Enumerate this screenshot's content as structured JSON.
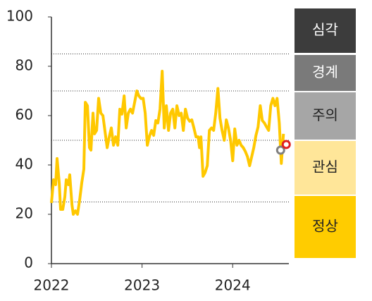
{
  "chart_data": {
    "type": "line",
    "color": "#ffc800",
    "x": [
      2022.0,
      2022.023,
      2022.047,
      2022.062,
      2022.086,
      2022.101,
      2022.125,
      2022.148,
      2022.163,
      2022.187,
      2022.202,
      2022.226,
      2022.241,
      2022.265,
      2022.288,
      2022.311,
      2022.335,
      2022.358,
      2022.374,
      2022.397,
      2022.42,
      2022.436,
      2022.459,
      2022.475,
      2022.498,
      2022.521,
      2022.545,
      2022.568,
      2022.591,
      2022.615,
      2022.638,
      2022.661,
      2022.685,
      2022.708,
      2022.732,
      2022.755,
      2022.778,
      2022.802,
      2022.825,
      2022.848,
      2022.872,
      2022.895,
      2022.918,
      2022.942,
      2022.965,
      2022.988,
      2023.012,
      2023.035,
      2023.058,
      2023.082,
      2023.105,
      2023.128,
      2023.152,
      2023.175,
      2023.198,
      2023.222,
      2023.245,
      2023.268,
      2023.292,
      2023.315,
      2023.339,
      2023.362,
      2023.385,
      2023.409,
      2023.432,
      2023.455,
      2023.479,
      2023.502,
      2023.525,
      2023.549,
      2023.572,
      2023.595,
      2023.619,
      2023.634,
      2023.65,
      2023.673,
      2023.696,
      2023.72,
      2023.743,
      2023.767,
      2023.79,
      2023.813,
      2023.837,
      2023.86,
      2023.883,
      2023.907,
      2023.93,
      2023.953,
      2023.977,
      2024.0,
      2024.023,
      2024.047,
      2024.07,
      2024.093,
      2024.117,
      2024.14,
      2024.163,
      2024.187,
      2024.21,
      2024.233,
      2024.257,
      2024.28,
      2024.304,
      2024.327,
      2024.35,
      2024.374,
      2024.397,
      2024.42,
      2024.444,
      2024.467,
      2024.49,
      2024.514,
      2024.537,
      2024.56
    ],
    "values": [
      24.6,
      34,
      32,
      42.6,
      32.6,
      22,
      22,
      27,
      34,
      32,
      36,
      24,
      20,
      21.4,
      20,
      25.7,
      32.9,
      38.3,
      65.4,
      64,
      47,
      46,
      61,
      52.6,
      54,
      67,
      61,
      60,
      53.7,
      47,
      51.4,
      55,
      48,
      51.4,
      48,
      62.6,
      60.6,
      68,
      55,
      61,
      62.6,
      61,
      65.4,
      70,
      68,
      66.9,
      67,
      61,
      48,
      51.7,
      54,
      52,
      58,
      57,
      62.6,
      78,
      55,
      64,
      54,
      61,
      62.6,
      55,
      64,
      60,
      61,
      54,
      62.6,
      59,
      57.7,
      58.3,
      55,
      51.4,
      51.4,
      47,
      51.4,
      35.4,
      36.9,
      39.7,
      54,
      55,
      54,
      61,
      71,
      59,
      54,
      50,
      58.3,
      55,
      50,
      41.7,
      54.6,
      48,
      50,
      48,
      47,
      45.4,
      43.4,
      39.7,
      43.4,
      47,
      52,
      55.4,
      64,
      58,
      57,
      55.4,
      54,
      64,
      67,
      64,
      67,
      57,
      40.6,
      52.6
    ],
    "points": [
      {
        "x": 2024.529,
        "y": 46,
        "color": "#808080"
      },
      {
        "x": 2024.591,
        "y": 48.3,
        "color": "#e02020"
      }
    ],
    "xlim": [
      2022,
      2024.62
    ],
    "xticks": [
      2022,
      2023,
      2024
    ],
    "ylim": [
      0,
      100
    ],
    "yticks": [
      0,
      20,
      40,
      60,
      80,
      100
    ],
    "thresholds": [
      25,
      50,
      70,
      85
    ],
    "levels": [
      {
        "label": "심각",
        "color": "#3c3c3c"
      },
      {
        "label": "경계",
        "color": "#7a7a7a"
      },
      {
        "label": "주의",
        "color": "#a6a6a6"
      },
      {
        "label": "관심",
        "color": "#ffe699"
      },
      {
        "label": "정상",
        "color": "#ffcc00"
      }
    ]
  }
}
